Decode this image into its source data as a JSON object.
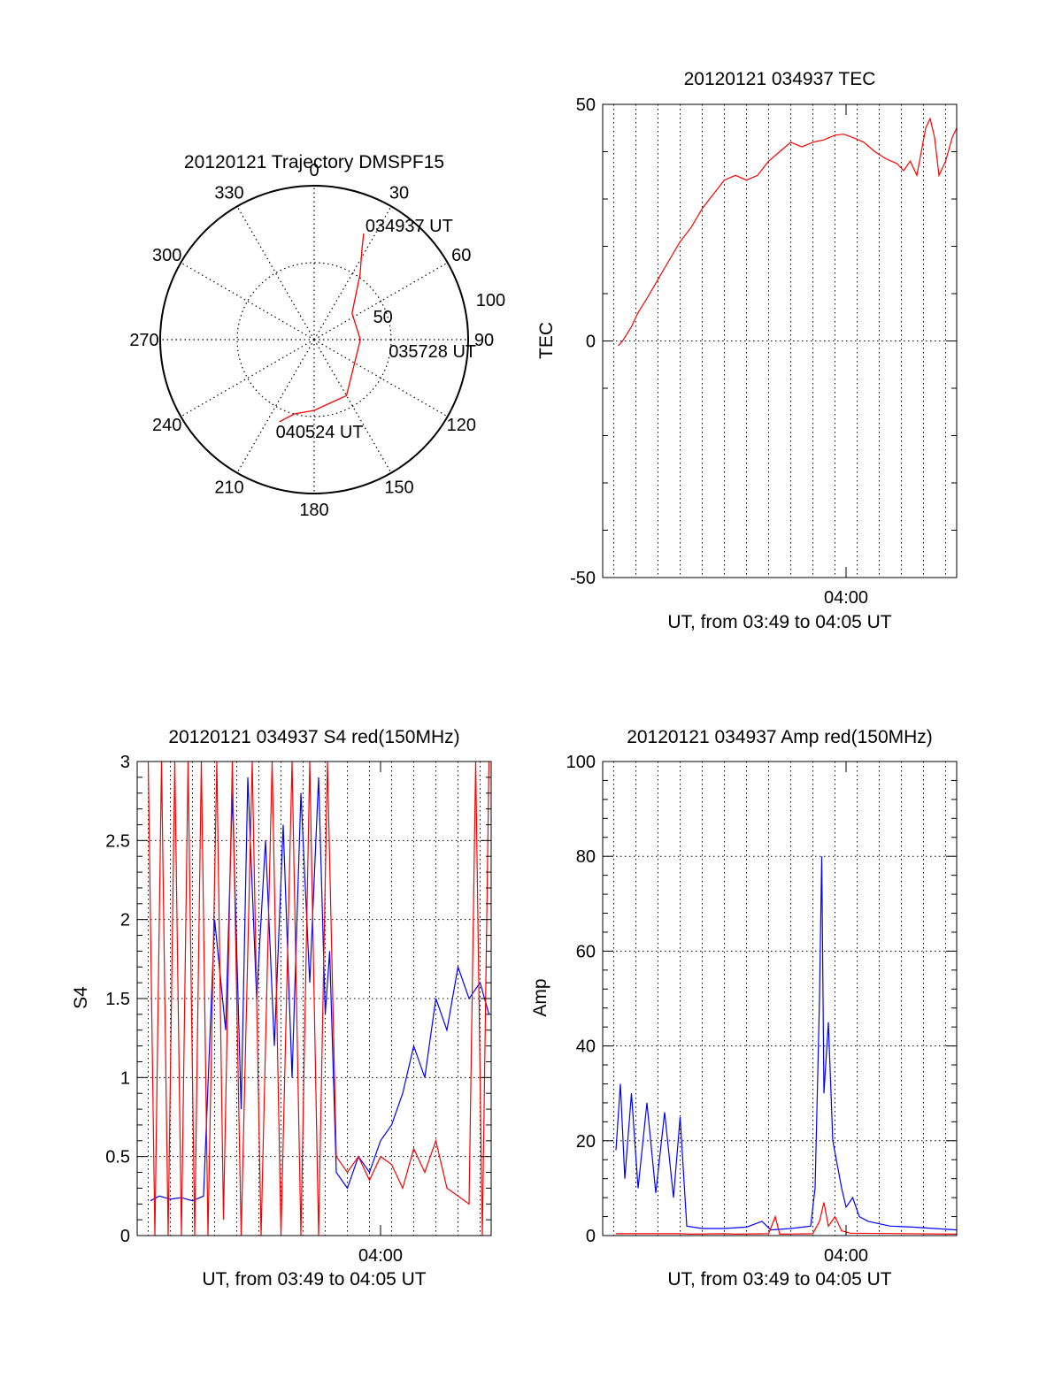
{
  "colors": {
    "red": "#ff0000",
    "blue": "#0000ff",
    "axis": "#000000",
    "grid": "#000000"
  },
  "polar": {
    "title": "20120121 Trajectory DMSPF15",
    "azimuth_labels": [
      "0",
      "30",
      "60",
      "90",
      "120",
      "150",
      "180",
      "210",
      "240",
      "270",
      "300",
      "330"
    ],
    "radius_labels": [
      "50",
      "100"
    ],
    "annotations": [
      "034937 UT",
      "035728 UT",
      "040524 UT"
    ]
  },
  "chart_data": [
    {
      "type": "line",
      "id": "polar_trajectory",
      "title": "20120121 Trajectory DMSPF15",
      "azimuth_ticks": [
        0,
        30,
        60,
        90,
        120,
        150,
        180,
        210,
        240,
        270,
        300,
        330
      ],
      "radius_range": [
        0,
        100
      ],
      "radius_ticks": [
        50,
        100
      ],
      "grid": true,
      "series": [
        {
          "color": "red",
          "points": [
            [
              25,
              76
            ],
            [
              28,
              66
            ],
            [
              35,
              52
            ],
            [
              55,
              30
            ],
            [
              90,
              30
            ],
            [
              150,
              42
            ],
            [
              180,
              46
            ],
            [
              195,
              50
            ],
            [
              203,
              58
            ]
          ]
        }
      ],
      "annotations": [
        {
          "text": "034937 UT",
          "az": 25,
          "r": 76
        },
        {
          "text": "035728 UT",
          "az": 90,
          "r": 30
        },
        {
          "text": "040524 UT",
          "az": 203,
          "r": 58
        }
      ]
    },
    {
      "type": "line",
      "id": "tec",
      "title": "20120121 034937 TEC",
      "ylabel": "TEC",
      "xlabel": "UT, from 03:49 to 04:05 UT",
      "xlim": [
        229,
        245
      ],
      "ylim": [
        -50,
        50
      ],
      "yticks": [
        -50,
        0,
        50
      ],
      "xticks": [
        {
          "t": 240,
          "label": "04:00"
        }
      ],
      "grid": true,
      "series": [
        {
          "color": "red",
          "points": [
            [
              229.7,
              -1
            ],
            [
              229.9,
              0
            ],
            [
              230.3,
              3
            ],
            [
              230.6,
              6
            ],
            [
              231.0,
              9
            ],
            [
              231.5,
              13
            ],
            [
              232.0,
              17
            ],
            [
              232.5,
              21
            ],
            [
              233.0,
              24
            ],
            [
              233.5,
              28
            ],
            [
              234.0,
              31
            ],
            [
              234.5,
              34
            ],
            [
              235.0,
              35
            ],
            [
              235.5,
              34
            ],
            [
              236.0,
              35
            ],
            [
              236.5,
              38
            ],
            [
              237.0,
              40
            ],
            [
              237.5,
              42
            ],
            [
              238.0,
              41
            ],
            [
              238.5,
              42
            ],
            [
              239.0,
              42.5
            ],
            [
              239.5,
              43.5
            ],
            [
              239.9,
              43.7
            ],
            [
              240.3,
              43
            ],
            [
              240.8,
              42
            ],
            [
              241.3,
              40
            ],
            [
              241.8,
              38.5
            ],
            [
              242.3,
              37.5
            ],
            [
              242.6,
              36
            ],
            [
              242.9,
              38
            ],
            [
              243.2,
              35
            ],
            [
              243.6,
              45
            ],
            [
              243.8,
              47
            ],
            [
              244.0,
              43
            ],
            [
              244.2,
              35
            ],
            [
              244.5,
              38
            ],
            [
              244.8,
              43
            ],
            [
              245.0,
              45
            ]
          ]
        }
      ]
    },
    {
      "type": "line",
      "id": "s4",
      "title": "20120121 034937 S4 red(150MHz)",
      "ylabel": "S4",
      "xlabel": "UT, from 03:49 to 04:05 UT",
      "xlim": [
        229,
        245
      ],
      "ylim": [
        0,
        3
      ],
      "yticks": [
        0,
        0.5,
        1,
        1.5,
        2,
        2.5,
        3
      ],
      "xticks": [
        {
          "t": 240,
          "label": "04:00"
        }
      ],
      "grid": true,
      "series": [
        {
          "color": "blue",
          "points": [
            [
              229.6,
              0.22
            ],
            [
              230.0,
              0.25
            ],
            [
              230.5,
              0.23
            ],
            [
              231.0,
              0.24
            ],
            [
              231.5,
              0.22
            ],
            [
              232.0,
              0.25
            ],
            [
              232.5,
              2.0
            ],
            [
              233.0,
              1.3
            ],
            [
              233.3,
              2.8
            ],
            [
              233.7,
              0.8
            ],
            [
              234.0,
              2.9
            ],
            [
              234.4,
              1.5
            ],
            [
              234.8,
              2.5
            ],
            [
              235.2,
              1.2
            ],
            [
              235.6,
              2.6
            ],
            [
              236.0,
              1.0
            ],
            [
              236.4,
              2.8
            ],
            [
              236.8,
              1.6
            ],
            [
              237.2,
              2.9
            ],
            [
              237.5,
              1.4
            ],
            [
              237.7,
              1.8
            ],
            [
              238.0,
              0.4
            ],
            [
              238.5,
              0.3
            ],
            [
              239.0,
              0.5
            ],
            [
              239.5,
              0.4
            ],
            [
              240.0,
              0.6
            ],
            [
              240.5,
              0.7
            ],
            [
              241.0,
              0.9
            ],
            [
              241.5,
              1.2
            ],
            [
              242.0,
              1.0
            ],
            [
              242.5,
              1.5
            ],
            [
              243.0,
              1.3
            ],
            [
              243.5,
              1.7
            ],
            [
              244.0,
              1.5
            ],
            [
              244.5,
              1.6
            ],
            [
              244.9,
              1.4
            ]
          ]
        },
        {
          "color": "red",
          "points": [
            [
              229.5,
              3.0
            ],
            [
              229.8,
              0.0
            ],
            [
              230.1,
              3.0
            ],
            [
              230.4,
              0.0
            ],
            [
              230.7,
              3.0
            ],
            [
              231.0,
              0.0
            ],
            [
              231.3,
              3.0
            ],
            [
              231.6,
              0.0
            ],
            [
              231.9,
              3.0
            ],
            [
              232.2,
              0.0
            ],
            [
              232.6,
              3.0
            ],
            [
              232.9,
              0.1
            ],
            [
              233.3,
              3.0
            ],
            [
              233.7,
              0.0
            ],
            [
              234.2,
              3.0
            ],
            [
              234.6,
              0.0
            ],
            [
              235.1,
              3.0
            ],
            [
              235.5,
              0.0
            ],
            [
              236.0,
              3.0
            ],
            [
              236.4,
              0.0
            ],
            [
              236.8,
              3.0
            ],
            [
              237.2,
              0.0
            ],
            [
              237.6,
              3.0
            ],
            [
              238.0,
              0.5
            ],
            [
              238.5,
              0.4
            ],
            [
              239.0,
              0.5
            ],
            [
              239.5,
              0.35
            ],
            [
              240.0,
              0.5
            ],
            [
              240.5,
              0.45
            ],
            [
              241.0,
              0.3
            ],
            [
              241.5,
              0.55
            ],
            [
              242.0,
              0.4
            ],
            [
              242.5,
              0.6
            ],
            [
              243.0,
              0.3
            ],
            [
              243.5,
              0.25
            ],
            [
              244.0,
              0.2
            ],
            [
              244.3,
              3.0
            ],
            [
              244.6,
              0.0
            ],
            [
              244.9,
              3.0
            ]
          ]
        }
      ]
    },
    {
      "type": "line",
      "id": "amp",
      "title": "20120121 034937 Amp red(150MHz)",
      "ylabel": "Amp",
      "xlabel": "UT, from 03:49 to 04:05 UT",
      "xlim": [
        229,
        245
      ],
      "ylim": [
        0,
        100
      ],
      "yticks": [
        0,
        20,
        40,
        60,
        80,
        100
      ],
      "xticks": [
        {
          "t": 240,
          "label": "04:00"
        }
      ],
      "grid": true,
      "series": [
        {
          "color": "blue",
          "points": [
            [
              229.6,
              18
            ],
            [
              229.8,
              32
            ],
            [
              230.0,
              12
            ],
            [
              230.3,
              30
            ],
            [
              230.6,
              10
            ],
            [
              231.0,
              28
            ],
            [
              231.4,
              9
            ],
            [
              231.8,
              26
            ],
            [
              232.2,
              8
            ],
            [
              232.5,
              25
            ],
            [
              232.8,
              2
            ],
            [
              233.5,
              1.5
            ],
            [
              234.5,
              1.5
            ],
            [
              235.5,
              1.8
            ],
            [
              236.2,
              3
            ],
            [
              236.6,
              1.2
            ],
            [
              237.5,
              1.5
            ],
            [
              238.4,
              2
            ],
            [
              238.6,
              10
            ],
            [
              238.8,
              50
            ],
            [
              238.9,
              80
            ],
            [
              239.0,
              30
            ],
            [
              239.2,
              45
            ],
            [
              239.4,
              20
            ],
            [
              239.6,
              15
            ],
            [
              239.8,
              10
            ],
            [
              240.0,
              6
            ],
            [
              240.3,
              8
            ],
            [
              240.6,
              4
            ],
            [
              241.0,
              3
            ],
            [
              242.0,
              2
            ],
            [
              243.0,
              1.8
            ],
            [
              244.0,
              1.5
            ],
            [
              245.0,
              1.2
            ]
          ]
        },
        {
          "color": "red",
          "points": [
            [
              229.6,
              0.4
            ],
            [
              232.5,
              0.4
            ],
            [
              233.0,
              0.3
            ],
            [
              234.5,
              0.4
            ],
            [
              235.0,
              0.3
            ],
            [
              236.5,
              0.4
            ],
            [
              236.8,
              4
            ],
            [
              237.0,
              0.3
            ],
            [
              238.5,
              0.4
            ],
            [
              238.8,
              3
            ],
            [
              239.0,
              7
            ],
            [
              239.2,
              2
            ],
            [
              239.5,
              4
            ],
            [
              239.8,
              1
            ],
            [
              240.2,
              0.5
            ],
            [
              245.0,
              0.3
            ]
          ]
        }
      ]
    }
  ]
}
